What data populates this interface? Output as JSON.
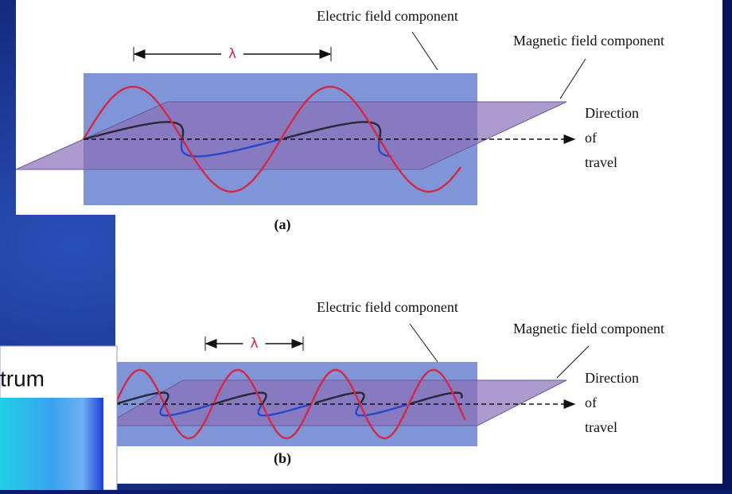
{
  "panel_a": {
    "wavelength_label": "λ",
    "electric_label": "Electric field component",
    "magnetic_label": "Magnetic field component",
    "direction_label": [
      "Direction",
      "of",
      "travel"
    ],
    "caption": "(a)"
  },
  "panel_b": {
    "wavelength_label": "λ",
    "electric_label": "Electric field component",
    "magnetic_label": "Magnetic field component",
    "direction_label": [
      "Direction",
      "of",
      "travel"
    ],
    "caption": "(b)"
  },
  "inset": {
    "title_fragment": "trum"
  }
}
